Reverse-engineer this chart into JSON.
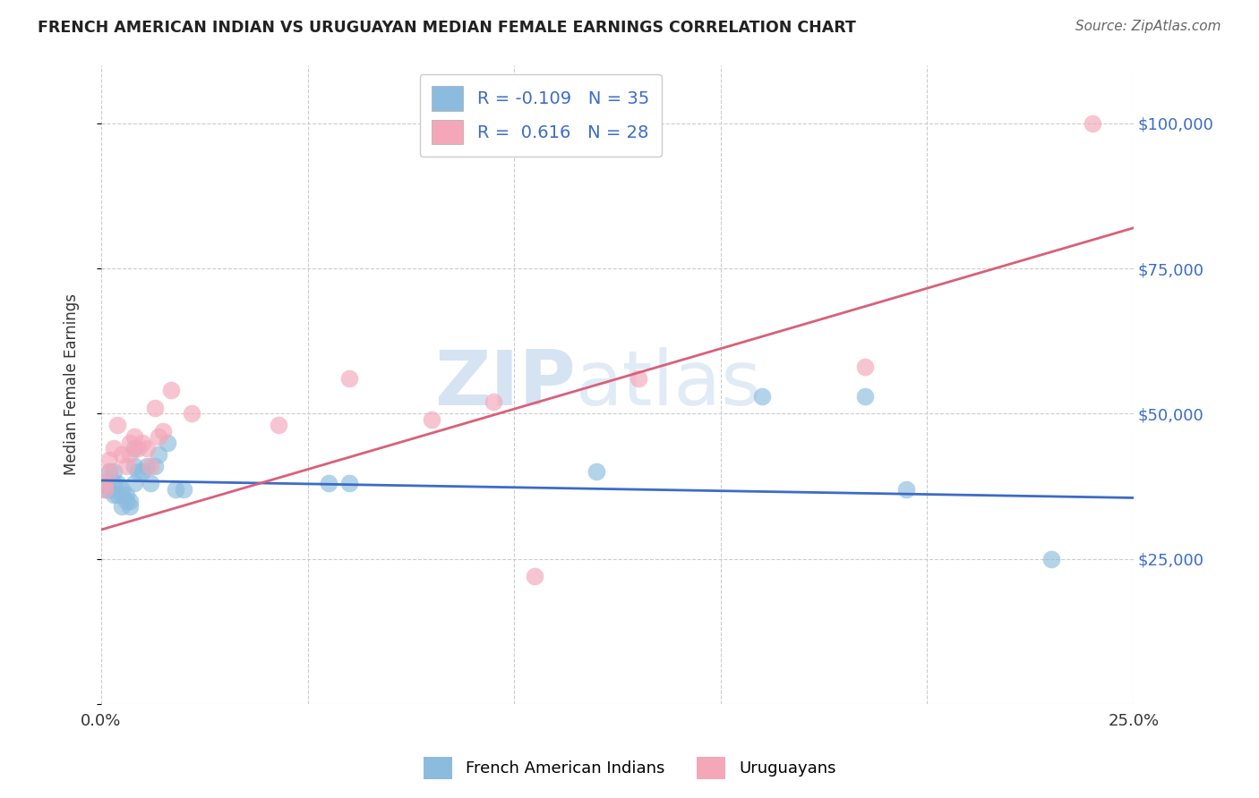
{
  "title": "FRENCH AMERICAN INDIAN VS URUGUAYAN MEDIAN FEMALE EARNINGS CORRELATION CHART",
  "source": "Source: ZipAtlas.com",
  "ylabel": "Median Female Earnings",
  "xlim": [
    0.0,
    0.25
  ],
  "ylim": [
    0,
    110000
  ],
  "yticks": [
    0,
    25000,
    50000,
    75000,
    100000
  ],
  "ytick_labels": [
    "",
    "$25,000",
    "$50,000",
    "$75,000",
    "$100,000"
  ],
  "xticks": [
    0.0,
    0.05,
    0.1,
    0.15,
    0.2,
    0.25
  ],
  "xtick_labels": [
    "0.0%",
    "",
    "",
    "",
    "",
    "25.0%"
  ],
  "blue_color": "#8BBCDE",
  "pink_color": "#F4A7B9",
  "blue_line_color": "#3B6CC7",
  "pink_line_color": "#D9607A",
  "legend_R_blue": "-0.109",
  "legend_N_blue": "35",
  "legend_R_pink": "0.616",
  "legend_N_pink": "28",
  "watermark_zip": "ZIP",
  "watermark_atlas": "atlas",
  "blue_x": [
    0.001,
    0.001,
    0.002,
    0.002,
    0.003,
    0.003,
    0.003,
    0.004,
    0.004,
    0.005,
    0.005,
    0.005,
    0.006,
    0.006,
    0.007,
    0.007,
    0.008,
    0.008,
    0.008,
    0.009,
    0.01,
    0.011,
    0.012,
    0.013,
    0.014,
    0.016,
    0.018,
    0.02,
    0.055,
    0.06,
    0.12,
    0.16,
    0.185,
    0.195,
    0.23
  ],
  "blue_y": [
    38000,
    37000,
    40000,
    37000,
    40000,
    38000,
    36000,
    38000,
    36000,
    37000,
    36000,
    34000,
    36000,
    35000,
    35000,
    34000,
    44000,
    41000,
    38000,
    40000,
    40000,
    41000,
    38000,
    41000,
    43000,
    45000,
    37000,
    37000,
    38000,
    38000,
    40000,
    53000,
    53000,
    37000,
    25000
  ],
  "pink_x": [
    0.001,
    0.001,
    0.002,
    0.002,
    0.003,
    0.004,
    0.005,
    0.006,
    0.007,
    0.007,
    0.008,
    0.009,
    0.01,
    0.011,
    0.012,
    0.013,
    0.014,
    0.015,
    0.017,
    0.022,
    0.043,
    0.06,
    0.08,
    0.095,
    0.105,
    0.13,
    0.185,
    0.24
  ],
  "pink_y": [
    38000,
    37000,
    42000,
    40000,
    44000,
    48000,
    43000,
    41000,
    45000,
    43000,
    46000,
    44000,
    45000,
    44000,
    41000,
    51000,
    46000,
    47000,
    54000,
    50000,
    48000,
    56000,
    49000,
    52000,
    22000,
    56000,
    58000,
    100000
  ],
  "blue_trendline_x": [
    0.0,
    0.25
  ],
  "blue_trendline_y": [
    38500,
    35500
  ],
  "pink_trendline_x": [
    0.0,
    0.25
  ],
  "pink_trendline_y": [
    30000,
    82000
  ]
}
